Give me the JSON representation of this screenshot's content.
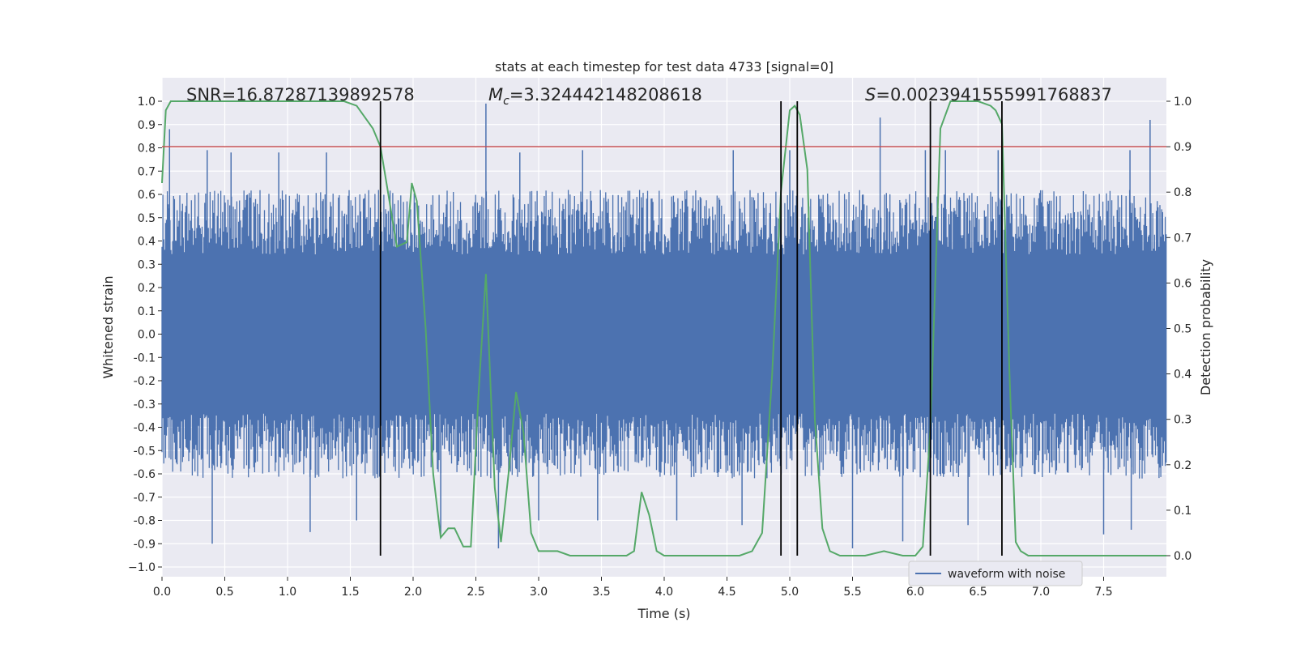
{
  "chart_data": {
    "type": "line",
    "title": "stats at each timestep for test data 4733 [signal=0]",
    "xlabel": "Time (s)",
    "ylabel": "Whitened strain",
    "y2label": "Detection probability",
    "xlim": [
      0.0,
      8.0
    ],
    "ylim": [
      -1.05,
      1.05
    ],
    "y2lim": [
      -0.05,
      1.05
    ],
    "xticks": [
      0.0,
      0.5,
      1.0,
      1.5,
      2.0,
      2.5,
      3.0,
      3.5,
      4.0,
      4.5,
      5.0,
      5.5,
      6.0,
      6.5,
      7.0,
      7.5
    ],
    "xtick_labels": [
      "0.0",
      "0.5",
      "1.0",
      "1.5",
      "2.0",
      "2.5",
      "3.0",
      "3.5",
      "4.0",
      "4.5",
      "5.0",
      "5.5",
      "6.0",
      "6.5",
      "7.0",
      "7.5"
    ],
    "yticks": [
      1.0,
      0.9,
      0.8,
      0.7,
      0.6,
      0.5,
      0.4,
      0.3,
      0.2,
      0.1,
      0.0,
      -0.1,
      -0.2,
      -0.3,
      -0.4,
      -0.5,
      -0.6,
      -0.7,
      -0.8,
      -0.9,
      -1.0
    ],
    "ytick_labels": [
      "1.0",
      "0.9",
      "0.8",
      "0.7",
      "0.6",
      "0.5",
      "0.4",
      "0.3",
      "0.2",
      "0.1",
      "0.0",
      "-0.1",
      "-0.2",
      "-0.3",
      "-0.4",
      "-0.5",
      "-0.6",
      "-0.7",
      "-0.8",
      "-0.9",
      "−1.0"
    ],
    "y2ticks": [
      1.0,
      0.9,
      0.8,
      0.7,
      0.6,
      0.5,
      0.4,
      0.3,
      0.2,
      0.1,
      0.0
    ],
    "y2tick_labels": [
      "1.0",
      "0.9",
      "0.8",
      "0.7",
      "0.6",
      "0.5",
      "0.4",
      "0.3",
      "0.2",
      "0.1",
      "0.0"
    ],
    "annotations": {
      "snr": "SNR=16.87287139892578",
      "mc_symbol": "M",
      "mc_sub": "c",
      "mc_value": "=3.324442148208618",
      "s_symbol": "S",
      "s_value": "=0.0023941555991768837"
    },
    "legend": {
      "label": "waveform with noise",
      "position": "lower-right"
    },
    "threshold": {
      "value": 0.9,
      "axis": "y2",
      "color": "#c44e52"
    },
    "vlines_x": [
      1.74,
      4.93,
      5.06,
      6.12,
      6.69
    ],
    "waveform": {
      "color": "#4c72b0",
      "envelope": 0.62,
      "spikes": [
        {
          "t": 0.06,
          "v": 0.88
        },
        {
          "t": 0.36,
          "v": 0.79
        },
        {
          "t": 0.55,
          "v": 0.78
        },
        {
          "t": 0.93,
          "v": 0.78
        },
        {
          "t": 1.31,
          "v": 0.78
        },
        {
          "t": 2.58,
          "v": 0.99
        },
        {
          "t": 2.85,
          "v": 0.78
        },
        {
          "t": 3.35,
          "v": 0.79
        },
        {
          "t": 4.55,
          "v": 0.79
        },
        {
          "t": 5.0,
          "v": 0.79
        },
        {
          "t": 5.72,
          "v": 0.93
        },
        {
          "t": 6.08,
          "v": 0.79
        },
        {
          "t": 6.24,
          "v": 0.79
        },
        {
          "t": 6.66,
          "v": 0.79
        },
        {
          "t": 7.71,
          "v": 0.79
        },
        {
          "t": 7.87,
          "v": 0.92
        },
        {
          "t": 0.4,
          "v": -0.9
        },
        {
          "t": 1.18,
          "v": -0.85
        },
        {
          "t": 1.55,
          "v": -0.8
        },
        {
          "t": 2.22,
          "v": -0.86
        },
        {
          "t": 2.68,
          "v": -0.92
        },
        {
          "t": 3.0,
          "v": -0.8
        },
        {
          "t": 3.47,
          "v": -0.8
        },
        {
          "t": 4.1,
          "v": -0.8
        },
        {
          "t": 4.62,
          "v": -0.82
        },
        {
          "t": 5.5,
          "v": -0.92
        },
        {
          "t": 5.9,
          "v": -0.89
        },
        {
          "t": 6.42,
          "v": -0.82
        },
        {
          "t": 7.5,
          "v": -0.86
        },
        {
          "t": 7.72,
          "v": -0.84
        }
      ]
    },
    "series": [
      {
        "name": "Detection probability",
        "color": "#55a868",
        "axis": "y2",
        "x": [
          0.0,
          0.03,
          0.07,
          0.12,
          0.2,
          0.35,
          0.55,
          0.8,
          1.0,
          1.2,
          1.45,
          1.55,
          1.68,
          1.74,
          1.8,
          1.87,
          1.95,
          1.99,
          2.03,
          2.1,
          2.16,
          2.22,
          2.28,
          2.33,
          2.4,
          2.46,
          2.52,
          2.58,
          2.65,
          2.7,
          2.76,
          2.82,
          2.88,
          2.94,
          3.0,
          3.07,
          3.15,
          3.25,
          3.4,
          3.55,
          3.7,
          3.76,
          3.82,
          3.88,
          3.94,
          4.0,
          4.1,
          4.25,
          4.4,
          4.6,
          4.7,
          4.78,
          4.86,
          4.93,
          5.0,
          5.04,
          5.08,
          5.14,
          5.2,
          5.26,
          5.32,
          5.4,
          5.5,
          5.6,
          5.75,
          5.9,
          6.0,
          6.06,
          6.12,
          6.2,
          6.28,
          6.34,
          6.42,
          6.5,
          6.6,
          6.64,
          6.69,
          6.75,
          6.8,
          6.84,
          6.9,
          7.0,
          7.2,
          7.4,
          7.6,
          7.8,
          8.0
        ],
        "values": [
          0.82,
          0.98,
          1.0,
          1.0,
          1.0,
          1.0,
          1.0,
          1.0,
          1.0,
          1.0,
          1.0,
          0.99,
          0.94,
          0.9,
          0.8,
          0.68,
          0.69,
          0.82,
          0.78,
          0.5,
          0.18,
          0.04,
          0.06,
          0.06,
          0.02,
          0.02,
          0.35,
          0.62,
          0.15,
          0.03,
          0.18,
          0.36,
          0.27,
          0.05,
          0.01,
          0.01,
          0.01,
          0.0,
          0.0,
          0.0,
          0.0,
          0.01,
          0.14,
          0.09,
          0.01,
          0.0,
          0.0,
          0.0,
          0.0,
          0.0,
          0.01,
          0.05,
          0.4,
          0.8,
          0.98,
          0.99,
          0.97,
          0.85,
          0.3,
          0.06,
          0.01,
          0.0,
          0.0,
          0.0,
          0.01,
          0.0,
          0.0,
          0.02,
          0.28,
          0.94,
          1.0,
          1.0,
          1.0,
          1.0,
          0.99,
          0.98,
          0.95,
          0.4,
          0.03,
          0.01,
          0.0,
          0.0,
          0.0,
          0.0,
          0.0,
          0.0,
          0.0
        ]
      }
    ]
  }
}
